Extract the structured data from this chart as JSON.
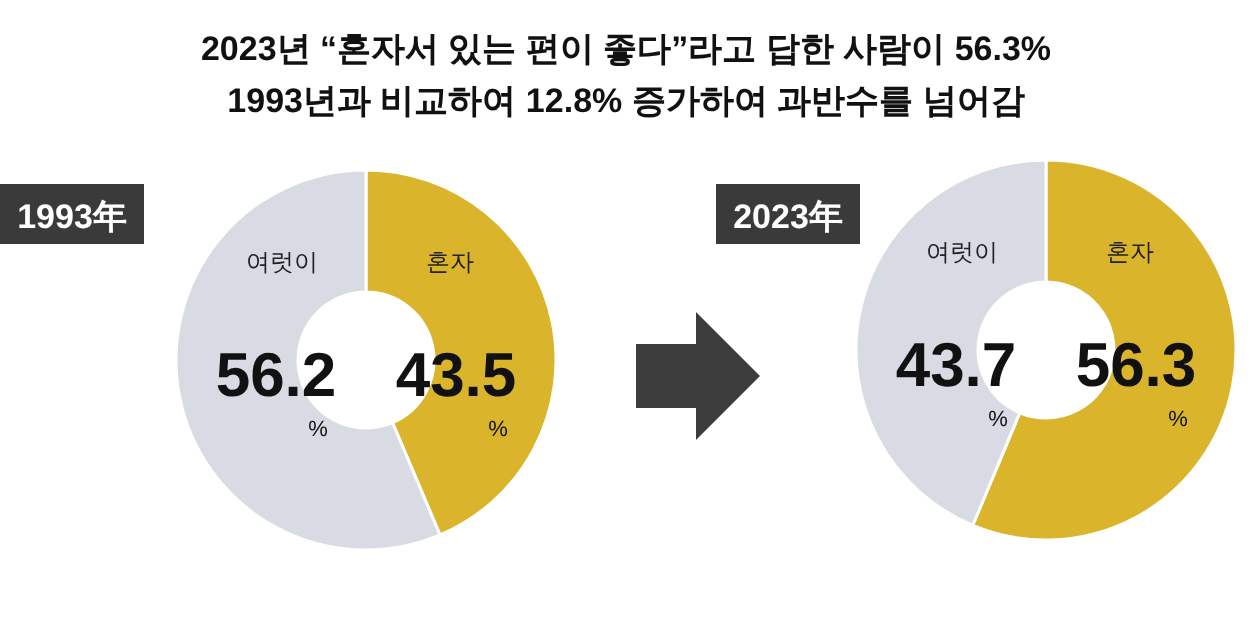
{
  "chart_data": [
    {
      "type": "donut",
      "title": "2023년 “혼자서 있는 편이 좋다”라고 답한 사람이 56.3%",
      "subtitle": "1993년과 비교하여 12.8% 증가하여 과반수를 넘어감",
      "annotations": [
        "1993年"
      ],
      "categories": [
        "혼자",
        "여럿이"
      ],
      "values": [
        43.5,
        56.2
      ],
      "colors": [
        "#dab52b",
        "#d8dbe4"
      ],
      "value_labels": [
        "43.5$_{%}$",
        "56.2$_{%}$"
      ]
    },
    {
      "type": "donut",
      "annotations": [
        "2023年"
      ],
      "categories": [
        "혼자",
        "여럿이"
      ],
      "values": [
        56.3,
        43.7
      ],
      "colors": [
        "#dab52b",
        "#d8dbe4"
      ],
      "value_labels": [
        "56.3$_{%}$",
        "43.7$_{%}$"
      ]
    }
  ]
}
